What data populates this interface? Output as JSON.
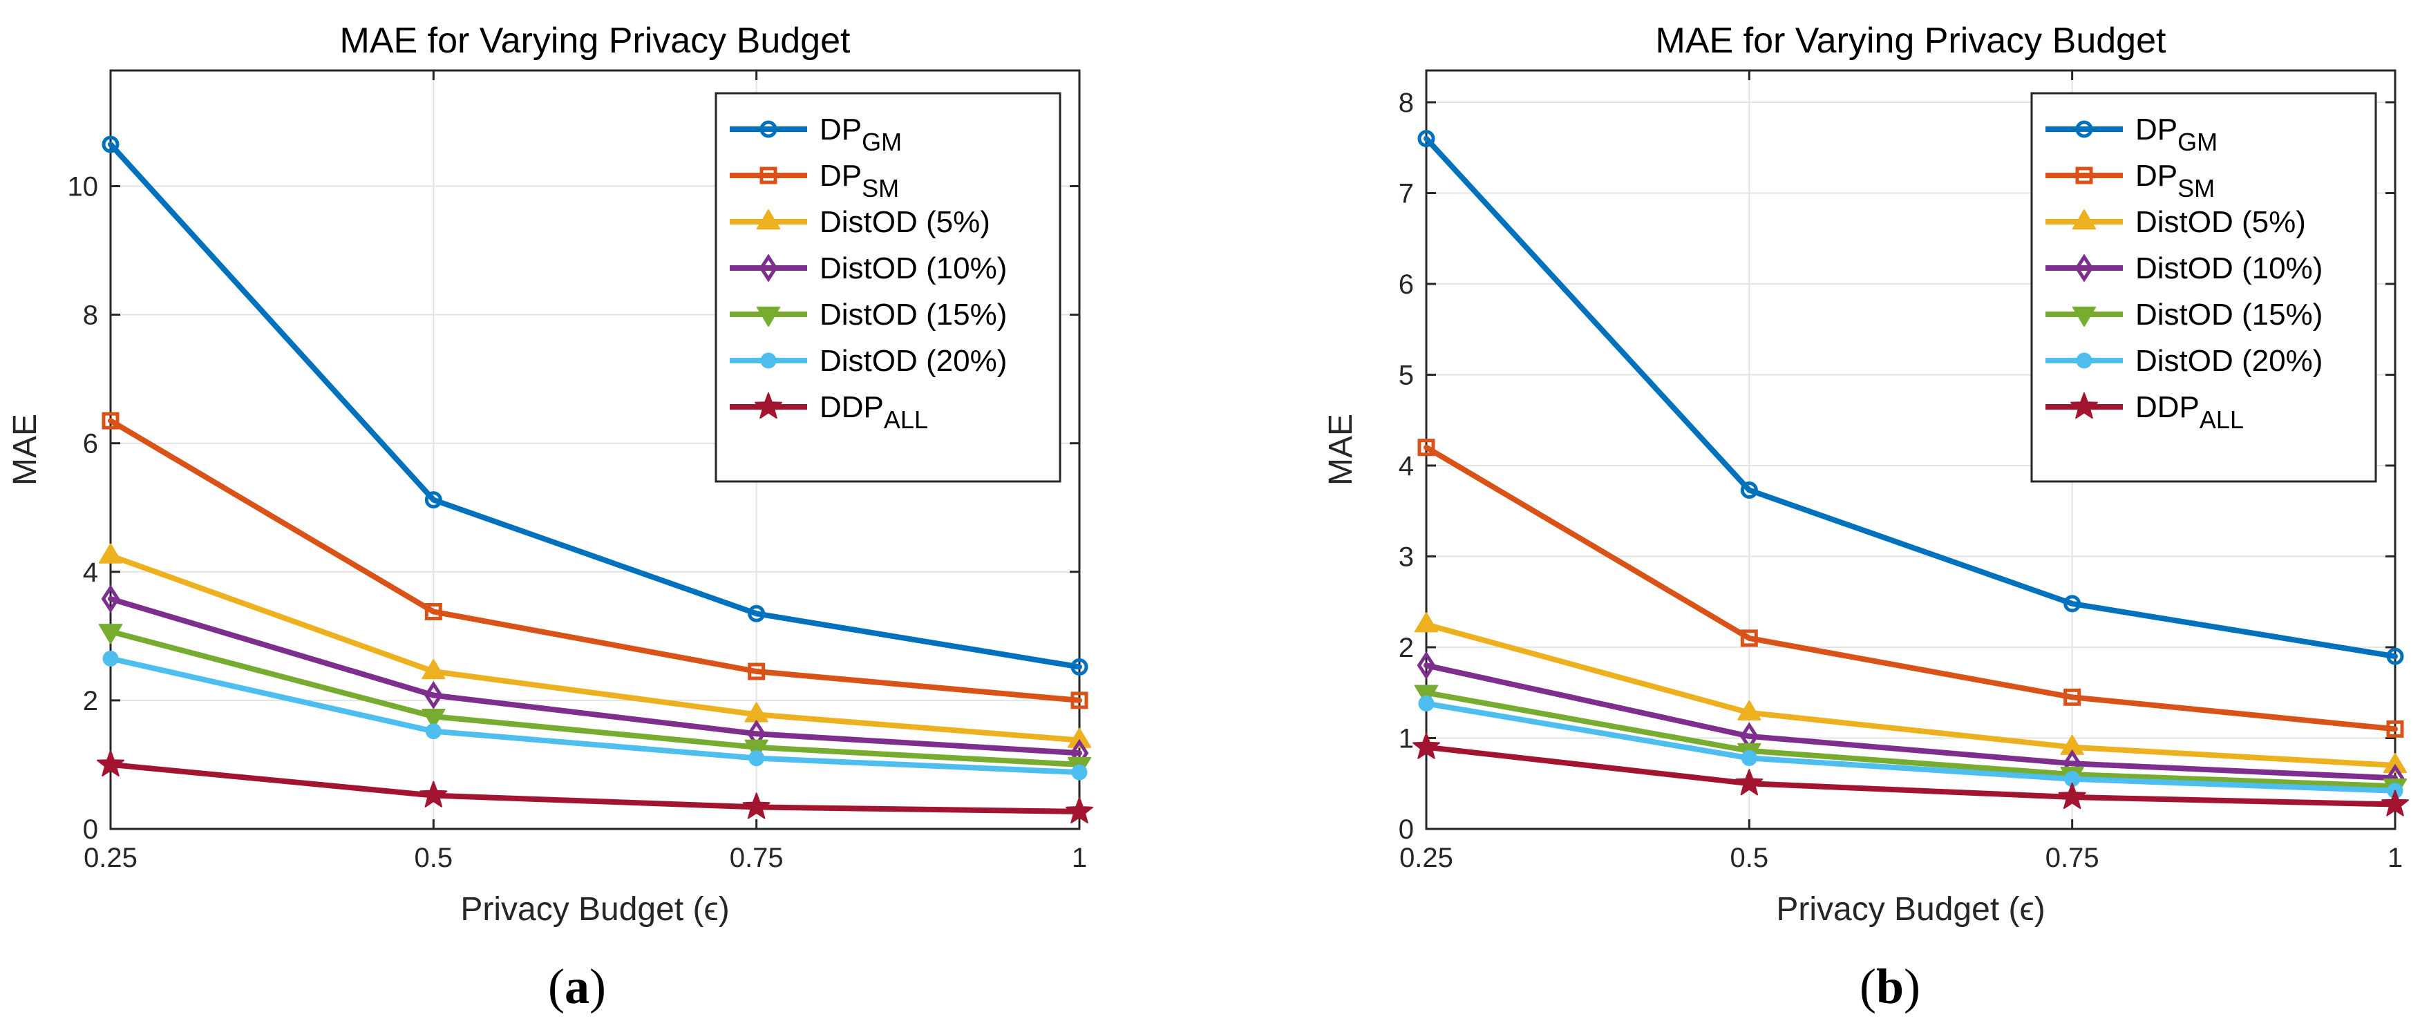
{
  "chart_data": [
    {
      "type": "line",
      "panel_label": "a",
      "title": "MAE for Varying Privacy Budget",
      "xlabel": "Privacy Budget (ϵ)",
      "ylabel": "MAE",
      "x": [
        0.25,
        0.5,
        0.75,
        1
      ],
      "x_tick_labels": [
        "0.25",
        "0.5",
        "0.75",
        "1"
      ],
      "xlim": [
        0.25,
        1
      ],
      "ylim": [
        0,
        11.8
      ],
      "y_ticks": [
        0,
        2,
        4,
        6,
        8,
        10
      ],
      "grid": true,
      "legend_position": "top-right",
      "series": [
        {
          "name": "DP",
          "subscript": "GM",
          "color": "#0072BD",
          "marker": "circle",
          "values": [
            10.65,
            5.12,
            3.35,
            2.52
          ]
        },
        {
          "name": "DP",
          "subscript": "SM",
          "color": "#D95319",
          "marker": "square",
          "values": [
            6.35,
            3.38,
            2.45,
            2.0
          ]
        },
        {
          "name": "DistOD (5%)",
          "subscript": "",
          "color": "#EDB120",
          "marker": "triangle-up",
          "values": [
            4.25,
            2.45,
            1.78,
            1.38
          ]
        },
        {
          "name": "DistOD (10%)",
          "subscript": "",
          "color": "#7E2F8E",
          "marker": "diamond",
          "values": [
            3.58,
            2.08,
            1.48,
            1.18
          ]
        },
        {
          "name": "DistOD (15%)",
          "subscript": "",
          "color": "#77AC30",
          "marker": "triangle-down",
          "values": [
            3.07,
            1.75,
            1.27,
            1.0
          ]
        },
        {
          "name": "DistOD (20%)",
          "subscript": "",
          "color": "#4DBEEE",
          "marker": "filled-circle",
          "values": [
            2.65,
            1.52,
            1.1,
            0.88
          ]
        },
        {
          "name": "DDP",
          "subscript": "ALL",
          "color": "#A2142F",
          "marker": "star",
          "values": [
            1.0,
            0.52,
            0.34,
            0.27
          ]
        }
      ]
    },
    {
      "type": "line",
      "panel_label": "b",
      "title": "MAE for Varying Privacy Budget",
      "xlabel": "Privacy Budget (ϵ)",
      "ylabel": "MAE",
      "x": [
        0.25,
        0.5,
        0.75,
        1
      ],
      "x_tick_labels": [
        "0.25",
        "0.5",
        "0.75",
        "1"
      ],
      "xlim": [
        0.25,
        1
      ],
      "ylim": [
        0,
        8.35
      ],
      "y_ticks": [
        0,
        1,
        2,
        3,
        4,
        5,
        6,
        7,
        8
      ],
      "grid": true,
      "legend_position": "top-right",
      "series": [
        {
          "name": "DP",
          "subscript": "GM",
          "color": "#0072BD",
          "marker": "circle",
          "values": [
            7.6,
            3.73,
            2.48,
            1.9
          ]
        },
        {
          "name": "DP",
          "subscript": "SM",
          "color": "#D95319",
          "marker": "square",
          "values": [
            4.2,
            2.1,
            1.45,
            1.1
          ]
        },
        {
          "name": "DistOD (5%)",
          "subscript": "",
          "color": "#EDB120",
          "marker": "triangle-up",
          "values": [
            2.25,
            1.28,
            0.9,
            0.7
          ]
        },
        {
          "name": "DistOD (10%)",
          "subscript": "",
          "color": "#7E2F8E",
          "marker": "diamond",
          "values": [
            1.8,
            1.02,
            0.72,
            0.56
          ]
        },
        {
          "name": "DistOD (15%)",
          "subscript": "",
          "color": "#77AC30",
          "marker": "triangle-down",
          "values": [
            1.5,
            0.86,
            0.6,
            0.47
          ]
        },
        {
          "name": "DistOD (20%)",
          "subscript": "",
          "color": "#4DBEEE",
          "marker": "filled-circle",
          "values": [
            1.38,
            0.78,
            0.55,
            0.42
          ]
        },
        {
          "name": "DDP",
          "subscript": "ALL",
          "color": "#A2142F",
          "marker": "star",
          "values": [
            0.9,
            0.5,
            0.35,
            0.27
          ]
        }
      ]
    }
  ]
}
